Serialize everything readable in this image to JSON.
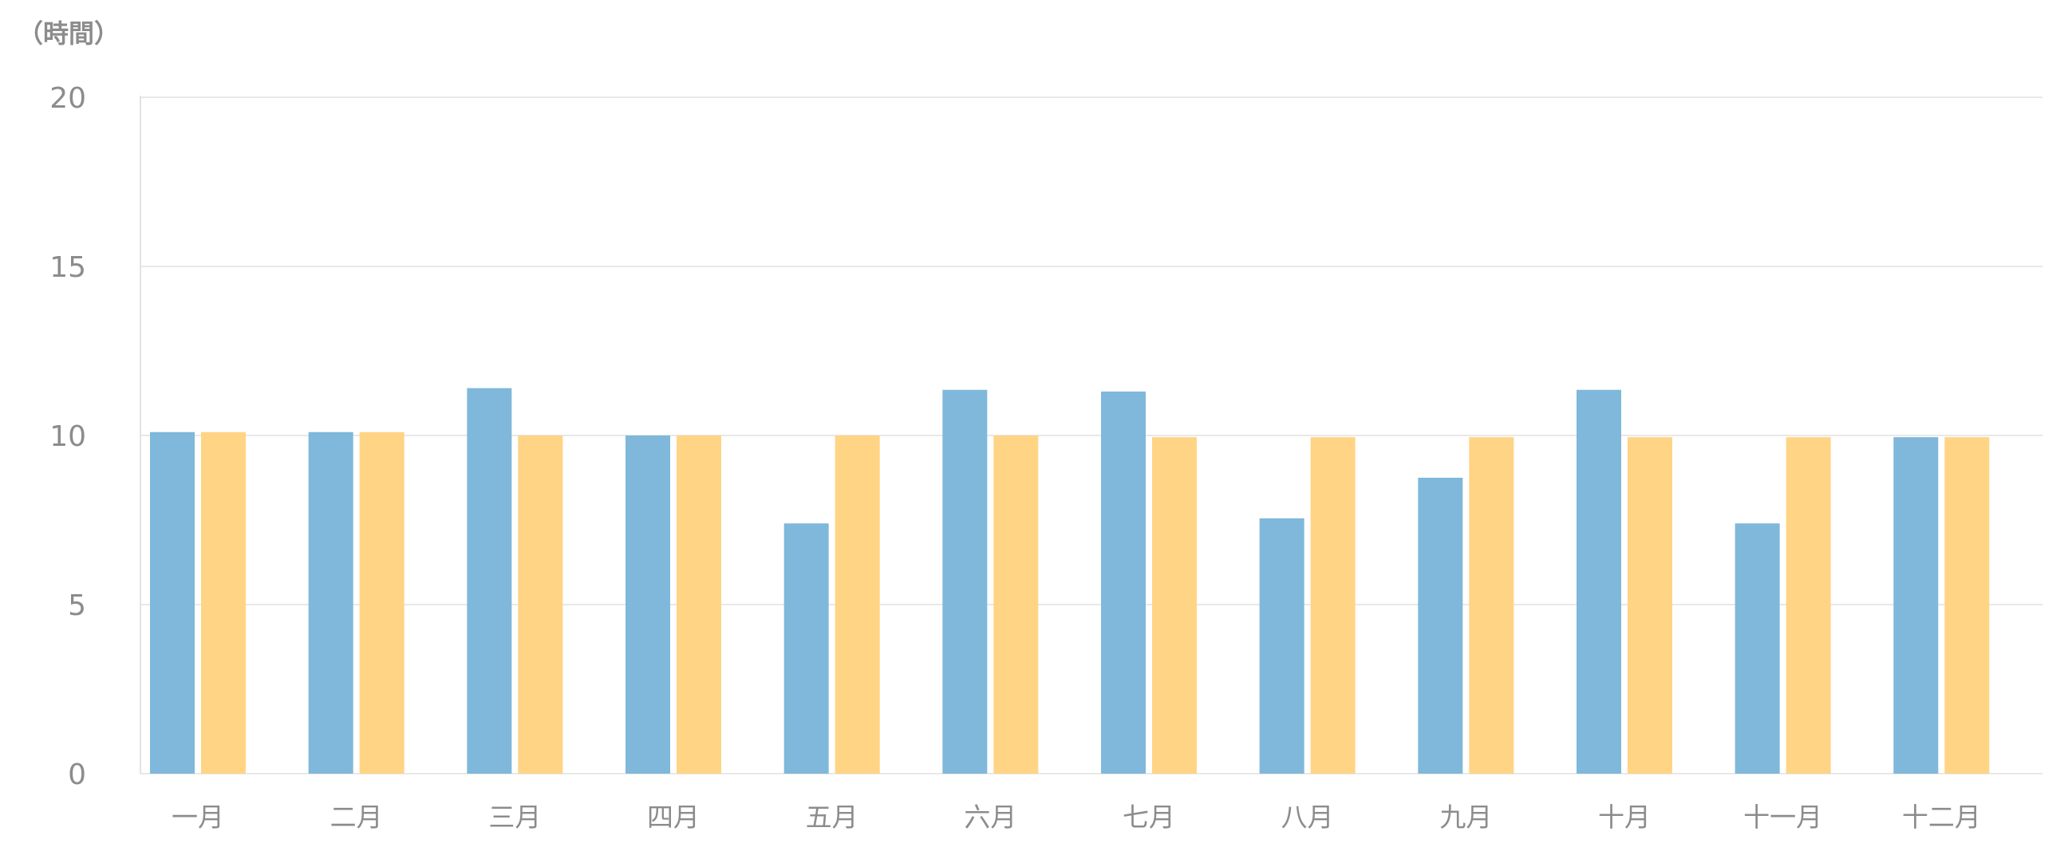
{
  "chart_data": {
    "type": "bar",
    "unit_label": "（時間）",
    "categories": [
      "一月",
      "二月",
      "三月",
      "四月",
      "五月",
      "六月",
      "七月",
      "八月",
      "九月",
      "十月",
      "十一月",
      "十二月"
    ],
    "series": [
      {
        "color": "#7fb8da",
        "values": [
          10.1,
          10.1,
          11.4,
          10.0,
          7.4,
          11.35,
          11.3,
          7.55,
          8.75,
          11.35,
          7.4,
          9.95
        ]
      },
      {
        "color": "#ffd485",
        "values": [
          10.1,
          10.1,
          10.0,
          10.0,
          10.0,
          10.0,
          9.95,
          9.95,
          9.95,
          9.95,
          9.95,
          9.95
        ]
      }
    ],
    "ylim": [
      0,
      20
    ],
    "yticks": [
      "0",
      "5",
      "10",
      "15",
      "20"
    ],
    "grid": true,
    "legend": "none"
  }
}
